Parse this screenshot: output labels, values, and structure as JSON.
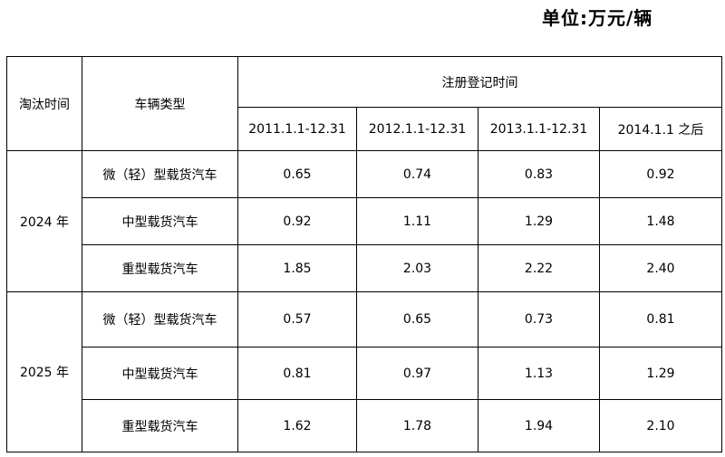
{
  "unit": "单位:万元/辆",
  "header": {
    "elimination_time": "淘汰时间",
    "vehicle_type": "车辆类型",
    "registration_time": "注册登记时间",
    "periods": [
      "2011.1.1-12.31",
      "2012.1.1-12.31",
      "2013.1.1-12.31",
      "2014.1.1 之后"
    ]
  },
  "groups": [
    {
      "year": "2024 年",
      "rows": [
        {
          "type": "微（轻）型载货汽车",
          "values": [
            "0.65",
            "0.74",
            "0.83",
            "0.92"
          ]
        },
        {
          "type": "中型载货汽车",
          "values": [
            "0.92",
            "1.11",
            "1.29",
            "1.48"
          ]
        },
        {
          "type": "重型载货汽车",
          "values": [
            "1.85",
            "2.03",
            "2.22",
            "2.40"
          ]
        }
      ]
    },
    {
      "year": "2025 年",
      "rows": [
        {
          "type": "微（轻）型载货汽车",
          "values": [
            "0.57",
            "0.65",
            "0.73",
            "0.81"
          ]
        },
        {
          "type": "中型载货汽车",
          "values": [
            "0.81",
            "0.97",
            "1.13",
            "1.29"
          ]
        },
        {
          "type": "重型载货汽车",
          "values": [
            "1.62",
            "1.78",
            "1.94",
            "2.10"
          ]
        }
      ]
    }
  ]
}
